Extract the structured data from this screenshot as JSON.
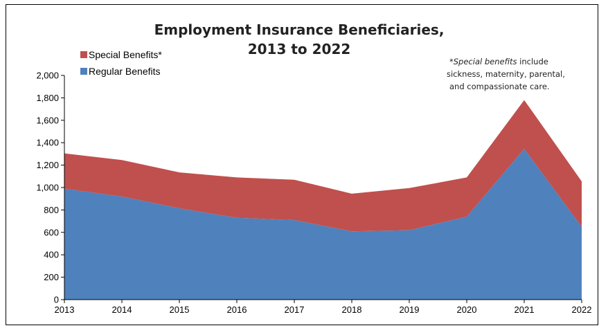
{
  "chart_data": {
    "type": "area",
    "stacked": true,
    "title": "Employment Insurance Beneficiaries,",
    "title_line2": "2013 to 2022",
    "x": [
      "2013",
      "2014",
      "2015",
      "2016",
      "2017",
      "2018",
      "2019",
      "2020",
      "2021",
      "2022"
    ],
    "series": [
      {
        "name": "Regular Benefits",
        "color": "#4f81bd",
        "values": [
          990,
          920,
          815,
          730,
          710,
          610,
          620,
          740,
          1345,
          650
        ]
      },
      {
        "name": "Special Benefits*",
        "color": "#c0504d",
        "values": [
          315,
          325,
          320,
          360,
          360,
          335,
          375,
          350,
          435,
          405
        ]
      }
    ],
    "ylim": [
      0,
      2000
    ],
    "yticks": [
      "0",
      "200",
      "400",
      "600",
      "800",
      "1,000",
      "1,200",
      "1,400",
      "1,600",
      "1,800",
      "2,000"
    ],
    "grid": false,
    "legend": "top-left",
    "note": {
      "line1_italic": "Special benefits",
      "line1_prefix": "*",
      "line1_rest": " include",
      "line2": "sickness, maternity, parental,",
      "line3": "and compassionate care."
    }
  }
}
